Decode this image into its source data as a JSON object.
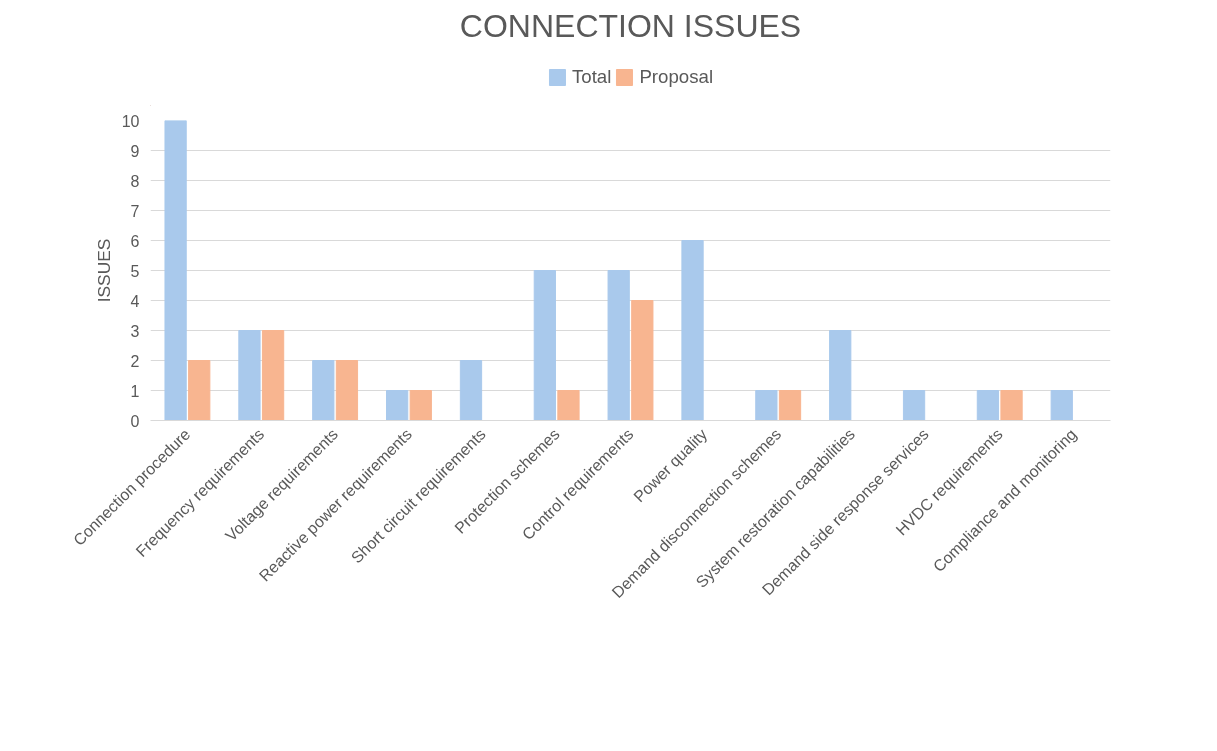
{
  "chart_data": {
    "type": "bar",
    "title": "CONNECTION ISSUES",
    "ylabel": "ISSUES",
    "categories": [
      "Connection procedure",
      "Frequency requirements",
      "Voltage requirements",
      "Reactive power requirements",
      "Short circuit requirements",
      "Protection schemes",
      "Control requirements",
      "Power quality",
      "Demand disconnection schemes",
      "System restoration capabilities",
      "Demand side response services",
      "HVDC requirements",
      "Compliance and monitoring"
    ],
    "series": [
      {
        "name": "Total",
        "color": "#a9c9ec",
        "values": [
          10,
          3,
          2,
          1,
          2,
          5,
          5,
          6,
          1,
          3,
          1,
          1,
          1
        ]
      },
      {
        "name": "Proposal",
        "color": "#f8b590",
        "values": [
          2,
          3,
          2,
          1,
          0,
          1,
          4,
          0,
          1,
          0,
          0,
          1,
          0
        ]
      }
    ],
    "ylim": [
      0,
      10
    ],
    "yticks": [
      0,
      1,
      2,
      3,
      4,
      5,
      6,
      7,
      8,
      9,
      10
    ],
    "grid": "y",
    "legend": "top"
  }
}
